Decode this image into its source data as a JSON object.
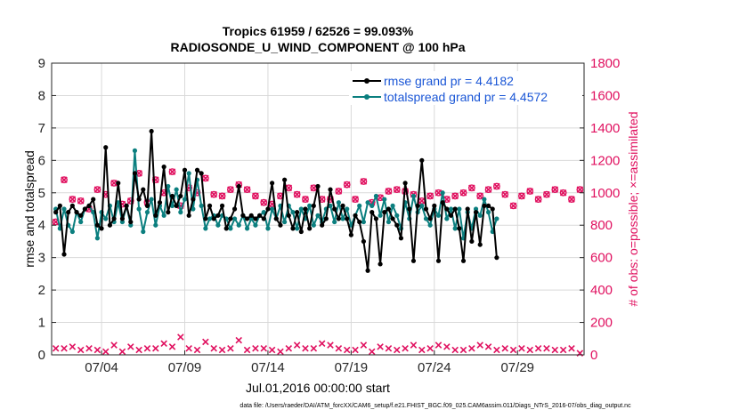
{
  "chart_data": {
    "type": "line",
    "title": "Tropics 61959 / 62526 = 99.093%",
    "subtitle": "RADIOSONDE_U_WIND_COMPONENT @ 100 hPa",
    "xlabel": "Jul.01,2016 00:00:00 start",
    "ylabel_left": "rmse and totalspread",
    "ylabel_right": "# of obs: o=possible; ×=assimilated",
    "footnote": "data file: /Users/raeder/DAI/ATM_forcXX/CAM6_setup/f.e21.FHIST_BGC.f09_025.CAM6assim.011/Diags_NTrS_2016-07/obs_diag_output.nc",
    "xlim": [
      0,
      32
    ],
    "ylim_left": [
      0,
      9
    ],
    "ylim_right": [
      0,
      1800
    ],
    "grid": true,
    "legend_position": "top-right",
    "x_ticks": [
      {
        "value": 3,
        "label": "07/04"
      },
      {
        "value": 8,
        "label": "07/09"
      },
      {
        "value": 13,
        "label": "07/14"
      },
      {
        "value": 18,
        "label": "07/19"
      },
      {
        "value": 23,
        "label": "07/24"
      },
      {
        "value": 28,
        "label": "07/29"
      }
    ],
    "y_ticks_left": [
      "0",
      "1",
      "2",
      "3",
      "4",
      "5",
      "6",
      "7",
      "8",
      "9"
    ],
    "y_ticks_right": [
      "0",
      "200",
      "400",
      "600",
      "800",
      "1000",
      "1200",
      "1400",
      "1600",
      "1800"
    ],
    "series": [
      {
        "name": "rmse grand pr = 4.4182",
        "color": "#000000",
        "axis": "left",
        "x_start": 0.25,
        "x_step": 0.25,
        "values": [
          4.4,
          4.6,
          3.1,
          4.4,
          4.6,
          4.4,
          4.3,
          4.5,
          4.6,
          4.8,
          4.0,
          3.9,
          6.4,
          4.0,
          4.2,
          5.3,
          4.2,
          4.6,
          4.1,
          5.6,
          4.8,
          5.1,
          4.6,
          6.9,
          4.3,
          4.7,
          5.8,
          4.4,
          4.9,
          4.6,
          4.9,
          5.7,
          4.3,
          4.8,
          5.7,
          5.6,
          4.2,
          4.6,
          4.2,
          4.3,
          4.6,
          3.9,
          4.2,
          4.5,
          5.2,
          4.3,
          4.2,
          4.3,
          4.2,
          4.3,
          4.2,
          4.5,
          5.3,
          4.2,
          4.0,
          5.4,
          4.3,
          3.9,
          4.4,
          3.8,
          4.5,
          3.9,
          4.6,
          5.2,
          4.0,
          4.2,
          5.1,
          4.5,
          4.2,
          4.6,
          4.2,
          3.7,
          4.3,
          4.1,
          3.5,
          2.6,
          4.4,
          4.2,
          2.8,
          4.4,
          4.5,
          4.2,
          4.0,
          3.6,
          5.3,
          4.5,
          2.9,
          4.6,
          6.0,
          4.5,
          4.2,
          4.6,
          2.9,
          4.7,
          4.5,
          4.3,
          4.5,
          3.9,
          2.9,
          4.5,
          3.5,
          4.4,
          3.4,
          4.6,
          4.6,
          4.5,
          3.0
        ]
      },
      {
        "name": "totalspread grand pr = 4.4572",
        "color": "#0b7f7f",
        "axis": "left",
        "x_start": 0.25,
        "x_step": 0.25,
        "values": [
          4.5,
          3.9,
          4.5,
          4.0,
          3.8,
          4.4,
          4.1,
          4.5,
          4.6,
          4.4,
          3.6,
          4.4,
          4.2,
          4.6,
          4.1,
          4.7,
          4.1,
          4.6,
          4.0,
          6.3,
          4.5,
          3.8,
          4.4,
          4.8,
          4.0,
          4.6,
          4.3,
          5.2,
          4.6,
          5.1,
          4.4,
          4.8,
          5.6,
          4.5,
          5.4,
          4.6,
          3.9,
          4.2,
          4.3,
          4.0,
          4.3,
          4.2,
          3.9,
          4.2,
          4.0,
          4.3,
          3.9,
          4.2,
          4.0,
          4.3,
          4.4,
          3.9,
          4.5,
          4.2,
          4.6,
          4.1,
          4.6,
          4.4,
          3.9,
          4.5,
          4.2,
          4.6,
          4.0,
          4.3,
          4.1,
          4.5,
          4.6,
          4.1,
          4.7,
          4.2,
          4.5,
          4.0,
          4.3,
          4.6,
          4.1,
          4.7,
          4.6,
          4.9,
          4.3,
          4.8,
          4.1,
          4.6,
          4.3,
          3.9,
          4.7,
          4.2,
          4.9,
          4.4,
          4.6,
          4.2,
          4.0,
          4.5,
          4.3,
          5.0,
          4.2,
          4.5,
          3.9,
          4.5,
          3.6,
          4.4,
          3.9,
          4.5,
          4.3,
          4.8,
          4.4,
          3.8,
          4.2
        ]
      },
      {
        "name": "obs possible",
        "color": "#e0105f",
        "axis": "right",
        "marker": "o",
        "x_start": 0.25,
        "x_step": 0.5,
        "values": [
          820,
          1080,
          960,
          950,
          900,
          1020,
          990,
          1060,
          930,
          950,
          1120,
          940,
          1080,
          1000,
          1130,
          920,
          1030,
          1000,
          1090,
          990,
          980,
          1020,
          1050,
          1020,
          980,
          940,
          930,
          980,
          1030,
          990,
          960,
          1030,
          960,
          960,
          1010,
          1050,
          960,
          1070,
          940,
          970,
          1010,
          1020,
          1010,
          990,
          950,
          980,
          1000,
          960,
          980,
          1000,
          1030,
          980,
          1020,
          1040,
          990,
          920,
          980,
          1010,
          960,
          990,
          1020,
          1000,
          960,
          1020
        ]
      },
      {
        "name": "obs assimilated",
        "color": "#e0105f",
        "axis": "right",
        "marker": "x",
        "x_start": 0.25,
        "x_step": 0.5,
        "values": [
          40,
          40,
          50,
          30,
          40,
          30,
          20,
          60,
          20,
          50,
          30,
          40,
          40,
          70,
          50,
          110,
          40,
          30,
          80,
          40,
          30,
          40,
          90,
          30,
          40,
          40,
          30,
          20,
          40,
          60,
          40,
          40,
          70,
          60,
          40,
          30,
          30,
          60,
          20,
          50,
          40,
          30,
          40,
          60,
          30,
          40,
          60,
          50,
          30,
          30,
          40,
          60,
          50,
          30,
          40,
          30,
          40,
          30,
          40,
          40,
          30,
          30,
          40,
          10
        ]
      }
    ]
  }
}
